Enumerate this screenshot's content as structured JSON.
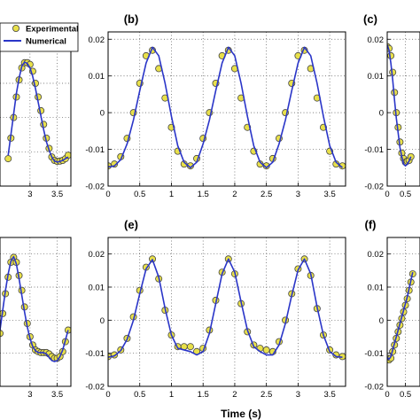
{
  "figure": {
    "xlabel": "Time (s)",
    "legend": {
      "items": [
        "Experimental",
        "Numerical"
      ],
      "position": "top-left"
    },
    "colors": {
      "numerical": "#2a35c8",
      "experimental_fill": "#e8e04a",
      "experimental_edge": "#444444",
      "grid": "#555555"
    }
  },
  "chart_data": [
    {
      "id": "a",
      "panel_label": "",
      "type": "line",
      "x_ticks": [
        "3",
        "3.5"
      ],
      "y_ticks": [],
      "xlim": [
        2.45,
        3.75
      ],
      "ylim": [
        -0.02,
        0.025
      ],
      "series": [
        {
          "name": "Experimental",
          "kind": "scatter",
          "x": [
            2.6,
            2.65,
            2.7,
            2.75,
            2.8,
            2.85,
            2.9,
            2.95,
            3.0,
            3.05,
            3.1,
            3.15,
            3.2,
            3.25,
            3.3,
            3.35,
            3.4,
            3.45,
            3.5,
            3.55,
            3.6,
            3.65,
            3.7
          ],
          "y": [
            -0.012,
            -0.006,
            0.0,
            0.006,
            0.011,
            0.0145,
            0.016,
            0.016,
            0.0155,
            0.0135,
            0.01,
            0.006,
            0.002,
            -0.002,
            -0.006,
            -0.009,
            -0.0115,
            -0.0125,
            -0.0128,
            -0.0127,
            -0.0125,
            -0.012,
            -0.011
          ]
        },
        {
          "name": "Numerical",
          "kind": "line",
          "x": [
            2.6,
            2.65,
            2.7,
            2.75,
            2.8,
            2.85,
            2.9,
            2.95,
            3.0,
            3.05,
            3.1,
            3.15,
            3.2,
            3.25,
            3.3,
            3.35,
            3.4,
            3.45,
            3.5,
            3.55,
            3.6,
            3.65,
            3.7
          ],
          "y": [
            -0.011,
            -0.005,
            0.001,
            0.007,
            0.0115,
            0.015,
            0.0162,
            0.0158,
            0.0145,
            0.012,
            0.0085,
            0.0045,
            0.0005,
            -0.0035,
            -0.007,
            -0.0095,
            -0.0115,
            -0.0127,
            -0.013,
            -0.0128,
            -0.0125,
            -0.012,
            -0.0115
          ]
        }
      ]
    },
    {
      "id": "b",
      "panel_label": "(b)",
      "type": "line",
      "x_ticks": [
        "0",
        "0.5",
        "1",
        "1.5",
        "2",
        "2.5",
        "3",
        "3.5"
      ],
      "y_ticks": [
        "-0.02",
        "-0.01",
        "0",
        "0.01",
        "0.02"
      ],
      "xlim": [
        0,
        3.75
      ],
      "ylim": [
        -0.02,
        0.022
      ],
      "series": [
        {
          "name": "Experimental",
          "kind": "scatter",
          "x": [
            0.0,
            0.1,
            0.2,
            0.3,
            0.4,
            0.5,
            0.6,
            0.7,
            0.8,
            0.9,
            1.0,
            1.1,
            1.2,
            1.3,
            1.4,
            1.5,
            1.6,
            1.7,
            1.8,
            1.9,
            2.0,
            2.1,
            2.2,
            2.3,
            2.4,
            2.5,
            2.6,
            2.7,
            2.8,
            2.9,
            3.0,
            3.1,
            3.2,
            3.3,
            3.4,
            3.5,
            3.6,
            3.7
          ],
          "y": [
            -0.0145,
            -0.014,
            -0.012,
            -0.007,
            0.0,
            0.008,
            0.0155,
            0.017,
            0.012,
            0.004,
            -0.004,
            -0.0105,
            -0.014,
            -0.0145,
            -0.0125,
            -0.007,
            0.0,
            0.008,
            0.0155,
            0.017,
            0.012,
            0.004,
            -0.004,
            -0.0105,
            -0.014,
            -0.0145,
            -0.0125,
            -0.007,
            0.0,
            0.008,
            0.0155,
            0.017,
            0.012,
            0.004,
            -0.004,
            -0.0105,
            -0.014,
            -0.0145
          ]
        },
        {
          "name": "Numerical",
          "kind": "line",
          "x": [
            0.0,
            0.1,
            0.2,
            0.3,
            0.4,
            0.5,
            0.6,
            0.7,
            0.8,
            0.9,
            1.0,
            1.1,
            1.2,
            1.3,
            1.4,
            1.5,
            1.6,
            1.7,
            1.8,
            1.9,
            2.0,
            2.1,
            2.2,
            2.3,
            2.4,
            2.5,
            2.6,
            2.7,
            2.8,
            2.9,
            3.0,
            3.1,
            3.2,
            3.3,
            3.4,
            3.5,
            3.6,
            3.7
          ],
          "y": [
            -0.0148,
            -0.0145,
            -0.0128,
            -0.0085,
            -0.002,
            0.006,
            0.0135,
            0.0178,
            0.0155,
            0.008,
            -0.001,
            -0.009,
            -0.0135,
            -0.015,
            -0.0135,
            -0.0085,
            -0.002,
            0.006,
            0.0135,
            0.0178,
            0.0155,
            0.008,
            -0.001,
            -0.009,
            -0.0135,
            -0.015,
            -0.0135,
            -0.0085,
            -0.002,
            0.006,
            0.0135,
            0.0178,
            0.0155,
            0.008,
            -0.001,
            -0.009,
            -0.0135,
            -0.015
          ]
        }
      ]
    },
    {
      "id": "c",
      "panel_label": "(c)",
      "type": "line",
      "x_ticks": [
        "0",
        "0.5"
      ],
      "y_ticks": [
        "-0.02",
        "-0.01",
        "0",
        "0.01",
        "0.02"
      ],
      "xlim": [
        0,
        0.9
      ],
      "ylim": [
        -0.02,
        0.022
      ],
      "series": [
        {
          "name": "Experimental",
          "kind": "scatter",
          "x": [
            0.0,
            0.05,
            0.1,
            0.15,
            0.2,
            0.25,
            0.3,
            0.35,
            0.4,
            0.45,
            0.5,
            0.55,
            0.6,
            0.65
          ],
          "y": [
            0.018,
            0.0175,
            0.0155,
            0.011,
            0.0055,
            0.0,
            -0.004,
            -0.008,
            -0.011,
            -0.0125,
            -0.0135,
            -0.0132,
            -0.013,
            -0.012
          ]
        },
        {
          "name": "Numerical",
          "kind": "line",
          "x": [
            0.0,
            0.05,
            0.1,
            0.15,
            0.2,
            0.25,
            0.3,
            0.35,
            0.4,
            0.45,
            0.5,
            0.55,
            0.6,
            0.65
          ],
          "y": [
            0.0185,
            0.017,
            0.0135,
            0.009,
            0.0035,
            -0.0015,
            -0.0055,
            -0.0095,
            -0.012,
            -0.014,
            -0.0145,
            -0.014,
            -0.0132,
            -0.012
          ]
        }
      ]
    },
    {
      "id": "d",
      "panel_label": "",
      "type": "line",
      "x_ticks": [
        "3",
        "3.5"
      ],
      "y_ticks": [],
      "xlim": [
        2.45,
        3.75
      ],
      "ylim": [
        -0.02,
        0.025
      ],
      "series": [
        {
          "name": "Experimental",
          "kind": "scatter",
          "x": [
            2.45,
            2.5,
            2.55,
            2.6,
            2.65,
            2.7,
            2.75,
            2.8,
            2.85,
            2.9,
            2.95,
            3.0,
            3.05,
            3.1,
            3.15,
            3.2,
            3.25,
            3.3,
            3.35,
            3.4,
            3.45,
            3.5,
            3.55,
            3.6,
            3.65,
            3.7
          ],
          "y": [
            -0.004,
            0.002,
            0.008,
            0.013,
            0.0175,
            0.019,
            0.0175,
            0.0135,
            0.009,
            0.004,
            -0.001,
            -0.005,
            -0.0075,
            -0.009,
            -0.0095,
            -0.0098,
            -0.0098,
            -0.0098,
            -0.0102,
            -0.011,
            -0.0115,
            -0.0115,
            -0.011,
            -0.0095,
            -0.0065,
            -0.003
          ]
        },
        {
          "name": "Numerical",
          "kind": "line",
          "x": [
            2.45,
            2.5,
            2.55,
            2.6,
            2.65,
            2.7,
            2.75,
            2.8,
            2.85,
            2.9,
            2.95,
            3.0,
            3.05,
            3.1,
            3.15,
            3.2,
            3.25,
            3.3,
            3.35,
            3.4,
            3.45,
            3.5,
            3.55,
            3.6,
            3.65,
            3.7
          ],
          "y": [
            -0.003,
            0.003,
            0.009,
            0.014,
            0.0178,
            0.0192,
            0.017,
            0.0125,
            0.0075,
            0.0025,
            -0.002,
            -0.0055,
            -0.008,
            -0.0092,
            -0.0098,
            -0.0098,
            -0.0098,
            -0.0102,
            -0.0112,
            -0.0122,
            -0.0125,
            -0.0122,
            -0.011,
            -0.009,
            -0.006,
            -0.003
          ]
        }
      ]
    },
    {
      "id": "e",
      "panel_label": "(e)",
      "type": "line",
      "x_ticks": [
        "0",
        "0.5",
        "1",
        "1.5",
        "2",
        "2.5",
        "3",
        "3.5"
      ],
      "y_ticks": [
        "-0.02",
        "-0.01",
        "0",
        "0.01",
        "0.02"
      ],
      "xlim": [
        0,
        3.75
      ],
      "ylim": [
        -0.02,
        0.025
      ],
      "series": [
        {
          "name": "Experimental",
          "kind": "scatter",
          "x": [
            0.0,
            0.1,
            0.2,
            0.3,
            0.4,
            0.5,
            0.6,
            0.7,
            0.8,
            0.9,
            1.0,
            1.1,
            1.2,
            1.3,
            1.4,
            1.5,
            1.6,
            1.7,
            1.8,
            1.9,
            2.0,
            2.1,
            2.2,
            2.3,
            2.4,
            2.5,
            2.6,
            2.7,
            2.8,
            2.9,
            3.0,
            3.1,
            3.2,
            3.3,
            3.4,
            3.5,
            3.6,
            3.7
          ],
          "y": [
            -0.011,
            -0.0105,
            -0.009,
            -0.0055,
            0.001,
            0.009,
            0.016,
            0.0185,
            0.0125,
            0.003,
            -0.0045,
            -0.008,
            -0.008,
            -0.008,
            -0.0095,
            -0.0085,
            -0.003,
            0.006,
            0.0145,
            0.0185,
            0.014,
            0.005,
            -0.0035,
            -0.0075,
            -0.0085,
            -0.009,
            -0.0095,
            -0.0065,
            0.0,
            0.008,
            0.0155,
            0.0185,
            0.0135,
            0.0035,
            -0.0045,
            -0.009,
            -0.0105,
            -0.011
          ]
        },
        {
          "name": "Numerical",
          "kind": "line",
          "x": [
            0.0,
            0.1,
            0.2,
            0.3,
            0.4,
            0.5,
            0.6,
            0.7,
            0.8,
            0.9,
            1.0,
            1.1,
            1.2,
            1.3,
            1.4,
            1.5,
            1.6,
            1.7,
            1.8,
            1.9,
            2.0,
            2.1,
            2.2,
            2.3,
            2.4,
            2.5,
            2.6,
            2.7,
            2.8,
            2.9,
            3.0,
            3.1,
            3.2,
            3.3,
            3.4,
            3.5,
            3.6,
            3.7
          ],
          "y": [
            -0.0112,
            -0.0108,
            -0.0092,
            -0.0058,
            0.0,
            0.008,
            0.0155,
            0.0183,
            0.013,
            0.0035,
            -0.0045,
            -0.0085,
            -0.009,
            -0.0095,
            -0.0105,
            -0.0095,
            -0.004,
            0.005,
            0.014,
            0.0185,
            0.0145,
            0.0055,
            -0.003,
            -0.008,
            -0.0095,
            -0.0105,
            -0.0105,
            -0.0075,
            -0.001,
            0.0075,
            0.0152,
            0.0185,
            0.014,
            0.004,
            -0.0045,
            -0.0095,
            -0.011,
            -0.0112
          ]
        }
      ]
    },
    {
      "id": "f",
      "panel_label": "(f)",
      "type": "line",
      "x_ticks": [
        "0",
        "0.5"
      ],
      "y_ticks": [
        "-0.02",
        "-0.01",
        "0",
        "0.01",
        "0.02"
      ],
      "xlim": [
        0,
        0.9
      ],
      "ylim": [
        -0.02,
        0.025
      ],
      "series": [
        {
          "name": "Experimental",
          "kind": "scatter",
          "x": [
            0.0,
            0.05,
            0.1,
            0.15,
            0.2,
            0.25,
            0.3,
            0.35,
            0.4,
            0.45,
            0.5,
            0.55,
            0.6,
            0.65,
            0.7
          ],
          "y": [
            -0.0115,
            -0.012,
            -0.0115,
            -0.0095,
            -0.0075,
            -0.0055,
            -0.0035,
            -0.0015,
            0.0005,
            0.0025,
            0.0045,
            0.0065,
            0.009,
            0.0115,
            0.014
          ]
        },
        {
          "name": "Numerical",
          "kind": "line",
          "x": [
            0.0,
            0.05,
            0.1,
            0.15,
            0.2,
            0.25,
            0.3,
            0.35,
            0.4,
            0.45,
            0.5,
            0.55,
            0.6,
            0.65,
            0.7
          ],
          "y": [
            -0.0112,
            -0.0118,
            -0.011,
            -0.009,
            -0.007,
            -0.005,
            -0.003,
            -0.001,
            0.001,
            0.003,
            0.005,
            0.007,
            0.0095,
            0.012,
            0.0145
          ]
        }
      ]
    }
  ]
}
